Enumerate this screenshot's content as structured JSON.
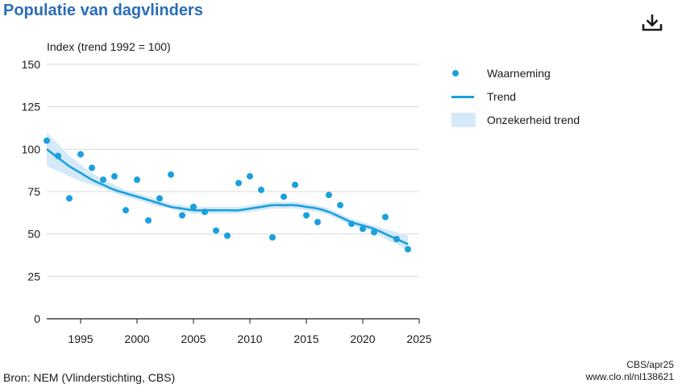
{
  "title": "Populatie van dagvlinders",
  "download_icon": "download-icon",
  "source": "Bron: NEM (Vlinderstichting, CBS)",
  "credit_line1": "CBS/apr25",
  "credit_line2": "www.clo.nl/nl138621",
  "colors": {
    "title": "#2a6db5",
    "series": "#1aa0dc",
    "band": "#d6e9f8",
    "grid": "#d9d9d9"
  },
  "legend": {
    "observation": "Waarneming",
    "trend": "Trend",
    "uncertainty": "Onzekerheid trend"
  },
  "chart_data": {
    "type": "scatter",
    "ylabel": "Index (trend 1992 = 100)",
    "xlim": [
      1992,
      2025
    ],
    "ylim": [
      0,
      150
    ],
    "x_ticks": [
      "1995",
      "2000",
      "2005",
      "2010",
      "2015",
      "2020",
      "2025"
    ],
    "y_ticks": [
      "0",
      "25",
      "50",
      "75",
      "100",
      "125",
      "150"
    ],
    "grid": true,
    "legend_position": "right",
    "series": [
      {
        "name": "Waarneming",
        "type": "scatter",
        "x": [
          1992,
          1993,
          1994,
          1995,
          1996,
          1997,
          1998,
          1999,
          2000,
          2001,
          2002,
          2003,
          2004,
          2005,
          2006,
          2007,
          2008,
          2009,
          2010,
          2011,
          2012,
          2013,
          2014,
          2015,
          2016,
          2017,
          2018,
          2019,
          2020,
          2021,
          2022,
          2023,
          2024
        ],
        "y": [
          105,
          96,
          71,
          97,
          89,
          82,
          84,
          64,
          82,
          58,
          71,
          85,
          61,
          66,
          63,
          52,
          49,
          80,
          84,
          76,
          48,
          72,
          79,
          61,
          57,
          73,
          67,
          56,
          53,
          51,
          60,
          47,
          41
        ]
      },
      {
        "name": "Trend",
        "type": "line",
        "x": [
          1992,
          1993,
          1994,
          1995,
          1996,
          1997,
          1998,
          1999,
          2000,
          2001,
          2002,
          2003,
          2004,
          2005,
          2006,
          2007,
          2008,
          2009,
          2010,
          2011,
          2012,
          2013,
          2014,
          2015,
          2016,
          2017,
          2018,
          2019,
          2020,
          2021,
          2022,
          2023,
          2024
        ],
        "y": [
          100,
          95,
          90,
          86,
          82,
          79,
          76,
          74,
          72,
          70,
          68,
          66,
          65,
          64,
          64,
          64,
          64,
          64,
          65,
          66,
          67,
          67,
          67,
          66,
          65,
          63,
          60,
          57,
          55,
          53,
          50,
          47,
          44
        ]
      },
      {
        "name": "Onzekerheid trend",
        "type": "band",
        "x": [
          1992,
          1993,
          1994,
          1995,
          1996,
          1997,
          1998,
          1999,
          2000,
          2001,
          2002,
          2003,
          2004,
          2005,
          2006,
          2007,
          2008,
          2009,
          2010,
          2011,
          2012,
          2013,
          2014,
          2015,
          2016,
          2017,
          2018,
          2019,
          2020,
          2021,
          2022,
          2023,
          2024
        ],
        "lower": [
          90,
          87,
          84,
          81,
          79,
          77,
          74,
          72,
          70,
          68,
          66,
          65,
          63,
          62,
          62,
          62,
          62,
          62,
          63,
          64,
          65,
          65,
          65,
          64,
          63,
          61,
          58,
          55,
          53,
          51,
          47,
          44,
          40
        ],
        "upper": [
          110,
          103,
          96,
          91,
          86,
          82,
          79,
          76,
          74,
          72,
          70,
          68,
          67,
          66,
          66,
          66,
          66,
          66,
          67,
          68,
          69,
          69,
          69,
          68,
          67,
          65,
          62,
          59,
          57,
          55,
          53,
          51,
          49
        ]
      }
    ]
  }
}
